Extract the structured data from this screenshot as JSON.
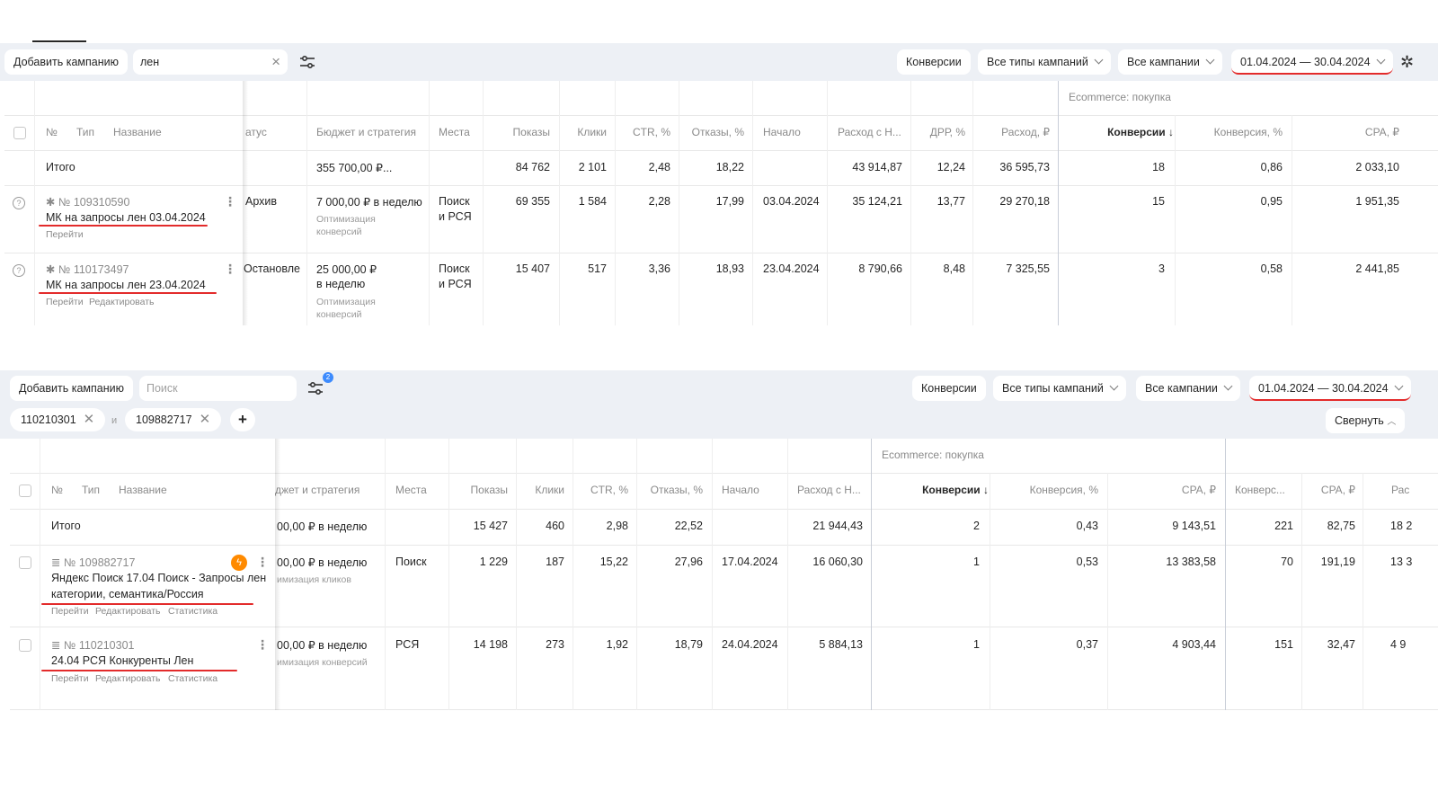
{
  "top": {
    "add_campaign": "Добавить кампанию",
    "search_value": "лен",
    "filters": [
      "Конверсии",
      "Все типы кампаний",
      "Все кампании"
    ],
    "date_range": "01.04.2024 — 30.04.2024",
    "group_header": "Ecommerce: покупка",
    "headers": {
      "num": "№",
      "type": "Тип",
      "name": "Название",
      "status": "атус",
      "budget": "Бюджет и стратегия",
      "places": "Места",
      "impressions": "Показы",
      "clicks": "Клики",
      "ctr": "CTR, %",
      "bounces": "Отказы, %",
      "start": "Начало",
      "spend_vat": "Расход с Н...",
      "drr": "ДРР, %",
      "spend": "Расход, ₽",
      "conversions": "Конверсии ↓",
      "conv_rate": "Конверсия, %",
      "cpa": "CPA, ₽"
    },
    "total": {
      "label": "Итого",
      "budget": "355 700,00 ₽...",
      "impressions": "84 762",
      "clicks": "2 101",
      "ctr": "2,48",
      "bounces": "18,22",
      "spend_vat": "43 914,87",
      "drr": "12,24",
      "spend": "36 595,73",
      "conversions": "18",
      "conv_rate": "0,86",
      "cpa": "2 033,10"
    },
    "rows": [
      {
        "id": "№ 109310590",
        "name": "МК на запросы лен 03.04.2024",
        "links": [
          "Перейти"
        ],
        "status": "Архив",
        "budget": "7 000,00 ₽ в неделю",
        "strategy": [
          "Оптимизация",
          "конверсий"
        ],
        "places": [
          "Поиск",
          "и РСЯ"
        ],
        "impressions": "69 355",
        "clicks": "1 584",
        "ctr": "2,28",
        "bounces": "17,99",
        "start": "03.04.2024",
        "spend_vat": "35 124,21",
        "drr": "13,77",
        "spend": "29 270,18",
        "conversions": "15",
        "conv_rate": "0,95",
        "cpa": "1 951,35"
      },
      {
        "id": "№ 110173497",
        "name": "МК на запросы лен 23.04.2024",
        "links": [
          "Перейти",
          "Редактировать"
        ],
        "status": "Остановле",
        "budget": [
          "25 000,00 ₽",
          "в неделю"
        ],
        "strategy": [
          "Оптимизация",
          "конверсий"
        ],
        "places": [
          "Поиск",
          "и РСЯ"
        ],
        "impressions": "15 407",
        "clicks": "517",
        "ctr": "3,36",
        "bounces": "18,93",
        "start": "23.04.2024",
        "spend_vat": "8 790,66",
        "drr": "8,48",
        "spend": "7 325,55",
        "conversions": "3",
        "conv_rate": "0,58",
        "cpa": "2 441,85"
      }
    ]
  },
  "bottom": {
    "add_campaign": "Добавить кампанию",
    "search_placeholder": "Поиск",
    "filter_badge": "2",
    "filters": [
      "Конверсии",
      "Все типы кампаний",
      "Все кампании"
    ],
    "date_range": "01.04.2024 — 30.04.2024",
    "chips": [
      "110210301",
      "109882717"
    ],
    "chip_joiner": "и",
    "add_chip": "+",
    "collapse": "Свернуть",
    "group_header": "Ecommerce: покупка",
    "headers": {
      "num": "№",
      "type": "Тип",
      "name": "Название",
      "budget": "джет и стратегия",
      "places": "Места",
      "impressions": "Показы",
      "clicks": "Клики",
      "ctr": "CTR, %",
      "bounces": "Отказы, %",
      "start": "Начало",
      "spend_vat": "Расход с Н...",
      "conversions": "Конверсии ↓",
      "conv_rate": "Конверсия, %",
      "cpa": "CPA, ₽",
      "conv2": "Конверс...",
      "cpa2": "CPA, ₽",
      "spend2": "Рас"
    },
    "total": {
      "label": "Итого",
      "budget": "00,00 ₽ в неделю",
      "impressions": "15 427",
      "clicks": "460",
      "ctr": "2,98",
      "bounces": "22,52",
      "spend_vat": "21 944,43",
      "conversions": "2",
      "conv_rate": "0,43",
      "cpa": "9 143,51",
      "conv2": "221",
      "cpa2": "82,75",
      "spend2": "18 2"
    },
    "rows": [
      {
        "id": "№ 109882717",
        "name_lines": [
          "Яндекс Поиск 17.04 Поиск - Запросы лен",
          "категории, семантика/Россия"
        ],
        "links": [
          "Перейти",
          "Редактировать",
          "Статистика"
        ],
        "budget": "00,00 ₽ в неделю",
        "strategy": "имизация кликов",
        "places": "Поиск",
        "impressions": "1 229",
        "clicks": "187",
        "ctr": "15,22",
        "bounces": "27,96",
        "start": "17.04.2024",
        "spend_vat": "16 060,30",
        "conversions": "1",
        "conv_rate": "0,53",
        "cpa": "13 383,58",
        "conv2": "70",
        "cpa2": "191,19",
        "spend2": "13 3"
      },
      {
        "id": "№ 110210301",
        "name_lines": [
          "24.04 РСЯ Конкуренты Лен"
        ],
        "links": [
          "Перейти",
          "Редактировать",
          "Статистика"
        ],
        "budget": "00,00 ₽ в неделю",
        "strategy": "имизация конверсий",
        "places": "РСЯ",
        "impressions": "14 198",
        "clicks": "273",
        "ctr": "1,92",
        "bounces": "18,79",
        "start": "24.04.2024",
        "spend_vat": "5 884,13",
        "conversions": "1",
        "conv_rate": "0,37",
        "cpa": "4 903,44",
        "conv2": "151",
        "cpa2": "32,47",
        "spend2": "4 9"
      }
    ]
  }
}
